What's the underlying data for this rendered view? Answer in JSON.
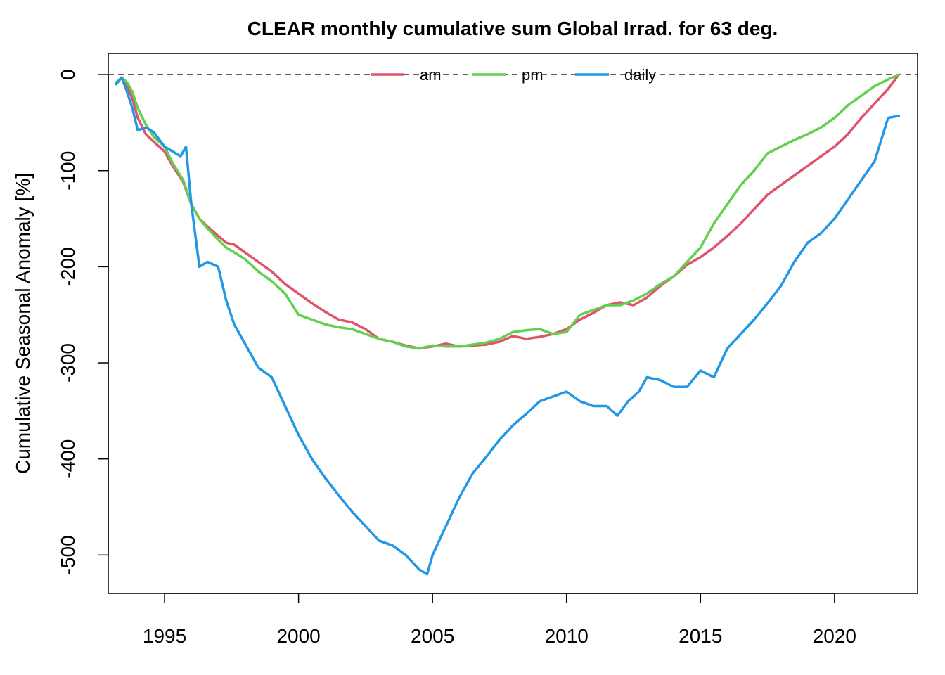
{
  "chart_data": {
    "type": "line",
    "title": "CLEAR monthly cumulative sum  Global Irrad. for 63 deg.",
    "xlabel": "",
    "ylabel": "Cumulative Seasonal Anomaly [%]",
    "xlim": [
      1992.9,
      2023.1
    ],
    "ylim": [
      -540,
      22
    ],
    "x_ticks": [
      1995,
      2000,
      2005,
      2010,
      2015,
      2020
    ],
    "x_tick_labels": [
      "1995",
      "2000",
      "2005",
      "2010",
      "2015",
      "2020"
    ],
    "y_ticks": [
      0,
      -100,
      -200,
      -300,
      -400,
      -500
    ],
    "y_tick_labels": [
      "0",
      "-100",
      "-200",
      "-300",
      "-400",
      "-500"
    ],
    "reference_line": {
      "y": 0,
      "style": "dashed",
      "color": "#000000"
    },
    "legend": {
      "position": "top-center",
      "entries": [
        "am",
        "pm",
        "daily"
      ]
    },
    "series": [
      {
        "name": "am",
        "color": "#DF536B",
        "x": [
          1993.2,
          1993.4,
          1993.6,
          1993.8,
          1994.0,
          1994.3,
          1994.6,
          1995.0,
          1995.3,
          1995.7,
          1996.0,
          1996.3,
          1996.6,
          1997.0,
          1997.3,
          1997.6,
          1998.0,
          1998.5,
          1999.0,
          1999.5,
          2000.0,
          2000.5,
          2001.0,
          2001.5,
          2002.0,
          2002.5,
          2003.0,
          2003.5,
          2004.0,
          2004.5,
          2005.0,
          2005.5,
          2006.0,
          2006.5,
          2007.0,
          2007.5,
          2008.0,
          2008.5,
          2009.0,
          2009.5,
          2010.0,
          2010.5,
          2011.0,
          2011.5,
          2012.0,
          2012.5,
          2013.0,
          2013.5,
          2014.0,
          2014.5,
          2015.0,
          2015.5,
          2016.0,
          2016.5,
          2017.0,
          2017.5,
          2018.0,
          2018.5,
          2019.0,
          2019.5,
          2020.0,
          2020.5,
          2021.0,
          2021.5,
          2022.0,
          2022.4
        ],
        "y": [
          -8,
          -3,
          -12,
          -25,
          -45,
          -62,
          -70,
          -80,
          -95,
          -112,
          -135,
          -150,
          -158,
          -168,
          -175,
          -177,
          -185,
          -195,
          -205,
          -218,
          -228,
          -238,
          -247,
          -255,
          -258,
          -265,
          -275,
          -278,
          -282,
          -285,
          -283,
          -280,
          -283,
          -282,
          -281,
          -278,
          -272,
          -275,
          -273,
          -270,
          -265,
          -255,
          -248,
          -240,
          -237,
          -240,
          -232,
          -220,
          -210,
          -198,
          -190,
          -180,
          -168,
          -155,
          -140,
          -125,
          -115,
          -105,
          -95,
          -85,
          -75,
          -62,
          -45,
          -30,
          -15,
          0
        ]
      },
      {
        "name": "pm",
        "color": "#61D04F",
        "x": [
          1993.2,
          1993.4,
          1993.6,
          1993.8,
          1994.0,
          1994.3,
          1994.6,
          1995.0,
          1995.3,
          1995.7,
          1996.0,
          1996.3,
          1996.6,
          1997.0,
          1997.3,
          1997.6,
          1998.0,
          1998.5,
          1999.0,
          1999.5,
          2000.0,
          2000.5,
          2001.0,
          2001.5,
          2002.0,
          2002.5,
          2003.0,
          2003.5,
          2004.0,
          2004.5,
          2005.0,
          2005.5,
          2006.0,
          2006.5,
          2007.0,
          2007.5,
          2008.0,
          2008.5,
          2009.0,
          2009.5,
          2010.0,
          2010.5,
          2011.0,
          2011.5,
          2012.0,
          2012.5,
          2013.0,
          2013.5,
          2014.0,
          2014.5,
          2015.0,
          2015.5,
          2016.0,
          2016.5,
          2017.0,
          2017.5,
          2018.0,
          2018.5,
          2019.0,
          2019.5,
          2020.0,
          2020.5,
          2021.0,
          2021.5,
          2022.0,
          2022.4
        ],
        "y": [
          -8,
          -3,
          -8,
          -18,
          -35,
          -52,
          -65,
          -75,
          -92,
          -110,
          -135,
          -150,
          -160,
          -172,
          -180,
          -185,
          -192,
          -205,
          -215,
          -228,
          -250,
          -255,
          -260,
          -263,
          -265,
          -270,
          -275,
          -278,
          -283,
          -285,
          -282,
          -283,
          -283,
          -281,
          -279,
          -275,
          -268,
          -266,
          -265,
          -270,
          -268,
          -250,
          -245,
          -240,
          -240,
          -235,
          -228,
          -218,
          -210,
          -195,
          -180,
          -155,
          -135,
          -115,
          -100,
          -82,
          -75,
          -68,
          -62,
          -55,
          -45,
          -32,
          -22,
          -12,
          -5,
          0
        ]
      },
      {
        "name": "daily",
        "color": "#2297E6",
        "x": [
          1993.2,
          1993.4,
          1993.6,
          1993.8,
          1994.0,
          1994.3,
          1994.6,
          1995.0,
          1995.3,
          1995.6,
          1995.8,
          1996.0,
          1996.3,
          1996.6,
          1997.0,
          1997.3,
          1997.6,
          1998.0,
          1998.5,
          1999.0,
          1999.5,
          2000.0,
          2000.5,
          2001.0,
          2001.5,
          2002.0,
          2002.5,
          2003.0,
          2003.5,
          2004.0,
          2004.5,
          2004.8,
          2005.0,
          2005.5,
          2006.0,
          2006.5,
          2007.0,
          2007.5,
          2008.0,
          2008.5,
          2009.0,
          2009.5,
          2010.0,
          2010.5,
          2011.0,
          2011.5,
          2011.9,
          2012.3,
          2012.7,
          2013.0,
          2013.5,
          2014.0,
          2014.5,
          2015.0,
          2015.5,
          2016.0,
          2016.5,
          2017.0,
          2017.5,
          2018.0,
          2018.5,
          2019.0,
          2019.5,
          2020.0,
          2020.5,
          2021.0,
          2021.5,
          2022.0,
          2022.4
        ],
        "y": [
          -10,
          -3,
          -18,
          -35,
          -58,
          -55,
          -60,
          -75,
          -80,
          -85,
          -75,
          -135,
          -200,
          -195,
          -200,
          -235,
          -260,
          -280,
          -305,
          -315,
          -345,
          -375,
          -400,
          -420,
          -438,
          -455,
          -470,
          -485,
          -490,
          -500,
          -515,
          -520,
          -500,
          -470,
          -440,
          -415,
          -398,
          -380,
          -365,
          -353,
          -340,
          -335,
          -330,
          -340,
          -345,
          -345,
          -355,
          -340,
          -330,
          -315,
          -318,
          -325,
          -325,
          -308,
          -315,
          -285,
          -270,
          -255,
          -238,
          -220,
          -195,
          -175,
          -165,
          -150,
          -130,
          -110,
          -90,
          -45,
          -43
        ]
      }
    ]
  }
}
